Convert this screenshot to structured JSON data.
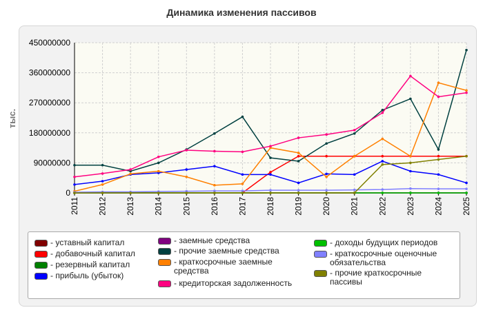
{
  "chart_data": {
    "type": "line",
    "title": "Динамика изменения пассивов",
    "ylabel": "тыс.",
    "xlabel": "",
    "ylim": [
      0,
      450000000
    ],
    "y_ticks": [
      "0",
      "90000000",
      "180000000",
      "270000000",
      "360000000",
      "450000000"
    ],
    "y_tick_values": [
      0,
      90000000,
      180000000,
      270000000,
      360000000,
      450000000
    ],
    "categories": [
      "2011",
      "2012",
      "2013",
      "2014",
      "2015",
      "2016",
      "2017",
      "2018",
      "2019",
      "2020",
      "2021",
      "2022",
      "2023",
      "2024",
      "2025"
    ],
    "grid": true,
    "legend_position": "bottom",
    "series": [
      {
        "name": "уставный капитал",
        "color": "#800000",
        "values": [
          0,
          0,
          0,
          0,
          0,
          0,
          0,
          0,
          0,
          0,
          0,
          0,
          0,
          0,
          0
        ]
      },
      {
        "name": "добавочный капитал",
        "color": "#ff0000",
        "values": [
          0,
          0,
          0,
          0,
          0,
          0,
          0,
          62000000,
          110000000,
          110000000,
          110000000,
          110000000,
          110000000,
          110000000,
          110000000
        ]
      },
      {
        "name": "резервный капитал",
        "color": "#008000",
        "values": [
          0,
          0,
          0,
          0,
          0,
          0,
          0,
          0,
          0,
          0,
          0,
          0,
          0,
          0,
          0
        ]
      },
      {
        "name": "прибыль (убыток)",
        "color": "#0000ff",
        "values": [
          25000000,
          35000000,
          55000000,
          60000000,
          70000000,
          80000000,
          55000000,
          55000000,
          30000000,
          57000000,
          55000000,
          95000000,
          65000000,
          55000000,
          30000000
        ]
      },
      {
        "name": "заемные средства",
        "color": "#800080",
        "values": [
          0,
          0,
          0,
          0,
          0,
          0,
          0,
          0,
          0,
          0,
          0,
          0,
          0,
          0,
          0
        ]
      },
      {
        "name": "прочие заемные средства",
        "color": "#004040",
        "values": [
          83000000,
          83000000,
          65000000,
          90000000,
          130000000,
          178000000,
          228000000,
          105000000,
          95000000,
          148000000,
          178000000,
          248000000,
          282000000,
          130000000,
          428000000
        ]
      },
      {
        "name": "краткосрочные заемные средства",
        "color": "#ff8000",
        "values": [
          5000000,
          25000000,
          57000000,
          65000000,
          48000000,
          23000000,
          27000000,
          135000000,
          120000000,
          48000000,
          110000000,
          162000000,
          110000000,
          330000000,
          307000000
        ]
      },
      {
        "name": "кредиторская задолженность",
        "color": "#ff0080",
        "values": [
          48000000,
          58000000,
          70000000,
          108000000,
          128000000,
          125000000,
          123000000,
          140000000,
          165000000,
          175000000,
          188000000,
          240000000,
          350000000,
          288000000,
          300000000
        ]
      },
      {
        "name": "доходы будущих периодов",
        "color": "#00c000",
        "values": [
          0,
          0,
          0,
          0,
          0,
          0,
          0,
          0,
          0,
          0,
          0,
          0,
          0,
          0,
          0
        ]
      },
      {
        "name": "краткосрочные оценочные обязательства",
        "color": "#8080ff",
        "values": [
          2000000,
          3000000,
          3000000,
          4000000,
          5000000,
          6000000,
          6000000,
          8000000,
          8000000,
          8000000,
          9000000,
          10000000,
          13000000,
          12000000,
          12000000
        ]
      },
      {
        "name": "прочие краткосрочные пассивы",
        "color": "#808000",
        "values": [
          0,
          0,
          0,
          0,
          0,
          0,
          0,
          0,
          0,
          0,
          0,
          85000000,
          90000000,
          100000000,
          110000000
        ]
      }
    ]
  }
}
